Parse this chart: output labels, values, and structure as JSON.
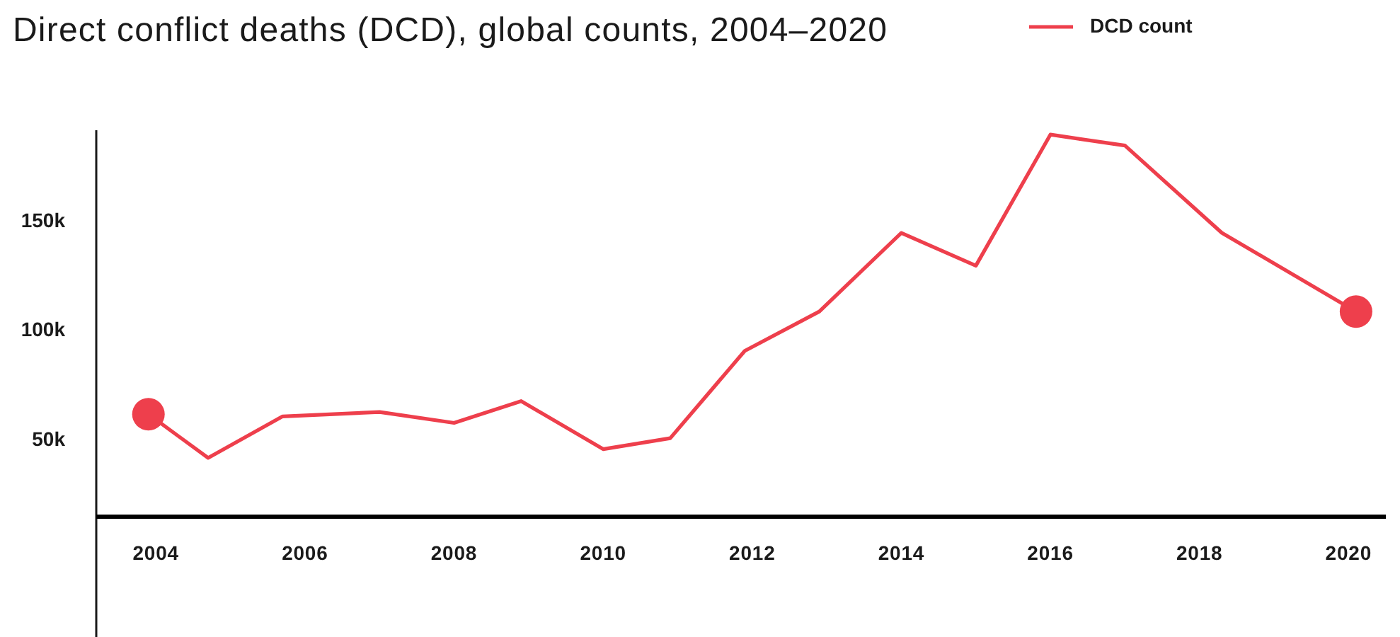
{
  "chart_data": {
    "type": "line",
    "title": "Direct conflict deaths (DCD), global counts, 2004–2020",
    "x": [
      2003.9,
      2004.7,
      2005.7,
      2007.0,
      2008.0,
      2008.9,
      2010.0,
      2010.9,
      2011.9,
      2012.9,
      2014.0,
      2015.0,
      2016.0,
      2017.0,
      2018.3,
      2020.1
    ],
    "series": [
      {
        "name": "DCD count",
        "color": "#ee3f4c",
        "values": [
          62000,
          42000,
          61000,
          63000,
          58000,
          68000,
          46000,
          51000,
          91000,
          109000,
          145000,
          130000,
          190000,
          185000,
          145000,
          109000
        ]
      },
      {
        "type": "scatter",
        "color": "#ee3f4c",
        "marker": "circle",
        "x": [
          2003.9,
          2020.1
        ],
        "values": [
          62000,
          109000
        ]
      }
    ],
    "xlim": [
      2003.2,
      2020.5
    ],
    "xticks": [
      2004,
      2006,
      2008,
      2010,
      2012,
      2014,
      2016,
      2018,
      2020
    ],
    "ylim": [
      -40000,
      192000
    ],
    "yticks": [
      {
        "value": 50000,
        "label": "50k"
      },
      {
        "value": 100000,
        "label": "100k"
      },
      {
        "value": 150000,
        "label": "150k"
      }
    ],
    "legend": "top right"
  }
}
